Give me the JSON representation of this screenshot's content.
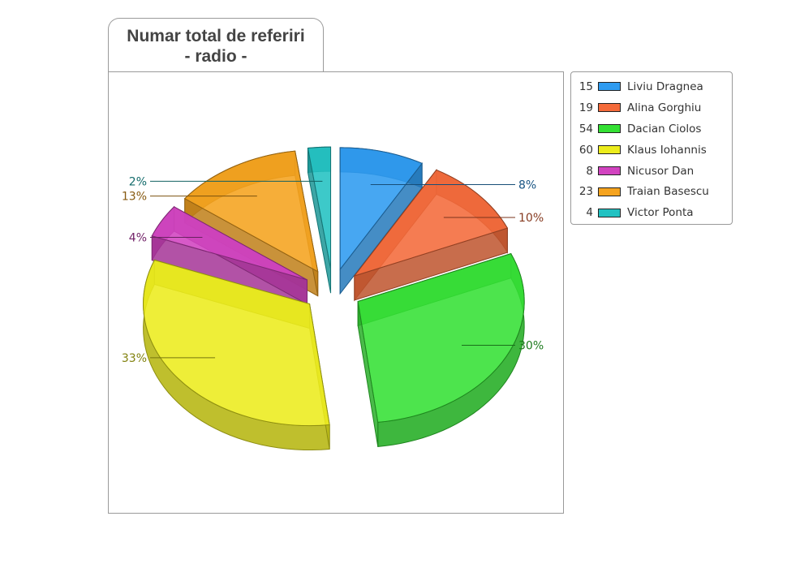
{
  "chart_data": {
    "type": "pie",
    "title_lines": [
      "Numar total de referiri",
      "- radio -"
    ],
    "slices": [
      {
        "label": "Liviu Dragnea",
        "value": 15,
        "percent_label": "8%",
        "color": "#2e9bf0"
      },
      {
        "label": "Alina Gorghiu",
        "value": 19,
        "percent_label": "10%",
        "color": "#f46a3a"
      },
      {
        "label": "Dacian Ciolos",
        "value": 54,
        "percent_label": "30%",
        "color": "#34e034"
      },
      {
        "label": "Klaus Iohannis",
        "value": 60,
        "percent_label": "33%",
        "color": "#ecec1c"
      },
      {
        "label": "Nicusor Dan",
        "value": 8,
        "percent_label": "4%",
        "color": "#d243c0"
      },
      {
        "label": "Traian Basescu",
        "value": 23,
        "percent_label": "13%",
        "color": "#f5a31e"
      },
      {
        "label": "Victor Ponta",
        "value": 4,
        "percent_label": "2%",
        "color": "#22c2c2"
      }
    ],
    "legend_position": "right",
    "exploded": true,
    "style": "3d"
  }
}
